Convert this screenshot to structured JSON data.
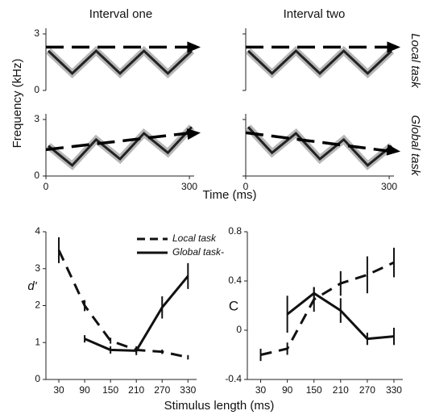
{
  "spectrograms": {
    "titles": [
      "Interval one",
      "Interval two"
    ],
    "tasks": [
      "Local task",
      "Global task"
    ],
    "ylabel": "Frequency (kHz)",
    "xlabel": "Time (ms)",
    "ylim": [
      0,
      3.3
    ],
    "yticks": [
      0,
      3
    ],
    "xlim": [
      0,
      310
    ],
    "xticks": [
      0,
      300
    ]
  },
  "chart_data": [
    {
      "type": "line",
      "ylabel": "d'",
      "xlabel": "Stimulus length (ms)",
      "x": [
        30,
        90,
        150,
        210,
        270,
        330
      ],
      "xlim": [
        0,
        350
      ],
      "xticks": [
        30,
        90,
        150,
        210,
        270,
        330
      ],
      "ylim": [
        0,
        4
      ],
      "yticks": [
        0,
        1,
        2,
        3,
        4
      ],
      "legend": "top-center",
      "series": [
        {
          "name": "Local task",
          "color": "#111111",
          "line_style": "dashed",
          "values": [
            3.5,
            2.0,
            1.05,
            0.8,
            0.75,
            0.6
          ],
          "errors": [
            0.35,
            0.15,
            0.08,
            0.08,
            0.06,
            0.06
          ]
        },
        {
          "name": "Global task-",
          "color": "#111111",
          "line_style": "solid",
          "values": [
            null,
            1.1,
            0.8,
            0.78,
            1.95,
            2.8
          ],
          "errors": [
            null,
            0.1,
            0.1,
            0.12,
            0.3,
            0.35
          ]
        }
      ]
    },
    {
      "type": "line",
      "ylabel": "C",
      "x": [
        30,
        90,
        150,
        210,
        270,
        330
      ],
      "xlim": [
        0,
        350
      ],
      "xticks": [
        30,
        90,
        150,
        210,
        270,
        330
      ],
      "ylim": [
        -0.4,
        0.8
      ],
      "yticks": [
        -0.4,
        0,
        0.4,
        0.8
      ],
      "series": [
        {
          "name": "Local task",
          "color": "#111111",
          "line_style": "dashed",
          "values": [
            -0.2,
            -0.15,
            0.25,
            0.38,
            0.45,
            0.55
          ],
          "errors": [
            0.05,
            0.05,
            0.1,
            0.1,
            0.15,
            0.12
          ]
        },
        {
          "name": "Global task-",
          "color": "#111111",
          "line_style": "solid",
          "values": [
            null,
            0.13,
            0.3,
            0.16,
            -0.07,
            -0.05
          ],
          "errors": [
            null,
            0.15,
            0.05,
            0.1,
            0.05,
            0.07
          ]
        }
      ]
    }
  ]
}
